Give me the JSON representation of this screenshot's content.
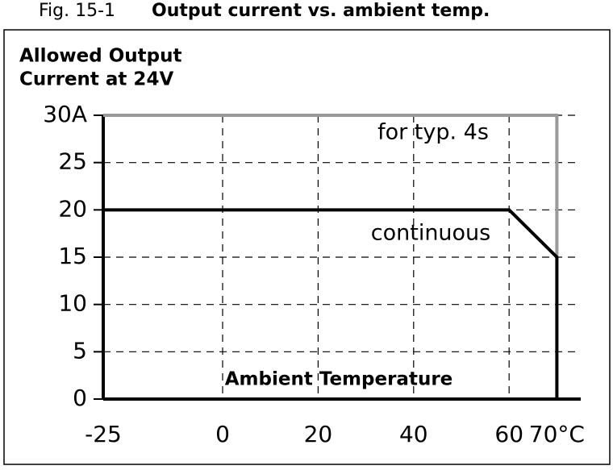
{
  "chart_data": {
    "type": "line",
    "title_prefix": "Fig. 15-1",
    "title": "Output current vs. ambient temp.",
    "ylabel": [
      "Allowed Output",
      "Current at 24V"
    ],
    "xlabel": "Ambient Temperature",
    "xlim": [
      -25,
      75
    ],
    "ylim": [
      0,
      30
    ],
    "xticks": [
      -25,
      0,
      20,
      40,
      60,
      {
        "value": 70,
        "label": "70°C"
      }
    ],
    "yticks": [
      0,
      5,
      10,
      15,
      20,
      25,
      {
        "value": 30,
        "label": "30A"
      }
    ],
    "grid": true,
    "series": [
      {
        "name": "continuous",
        "color": "#000000",
        "x": [
          -25,
          60,
          70,
          70
        ],
        "values": [
          20,
          20,
          15,
          0
        ]
      },
      {
        "name": "for typ. 4s",
        "color": "#999999",
        "x": [
          -25,
          70,
          70
        ],
        "values": [
          30,
          30,
          15
        ]
      }
    ]
  }
}
